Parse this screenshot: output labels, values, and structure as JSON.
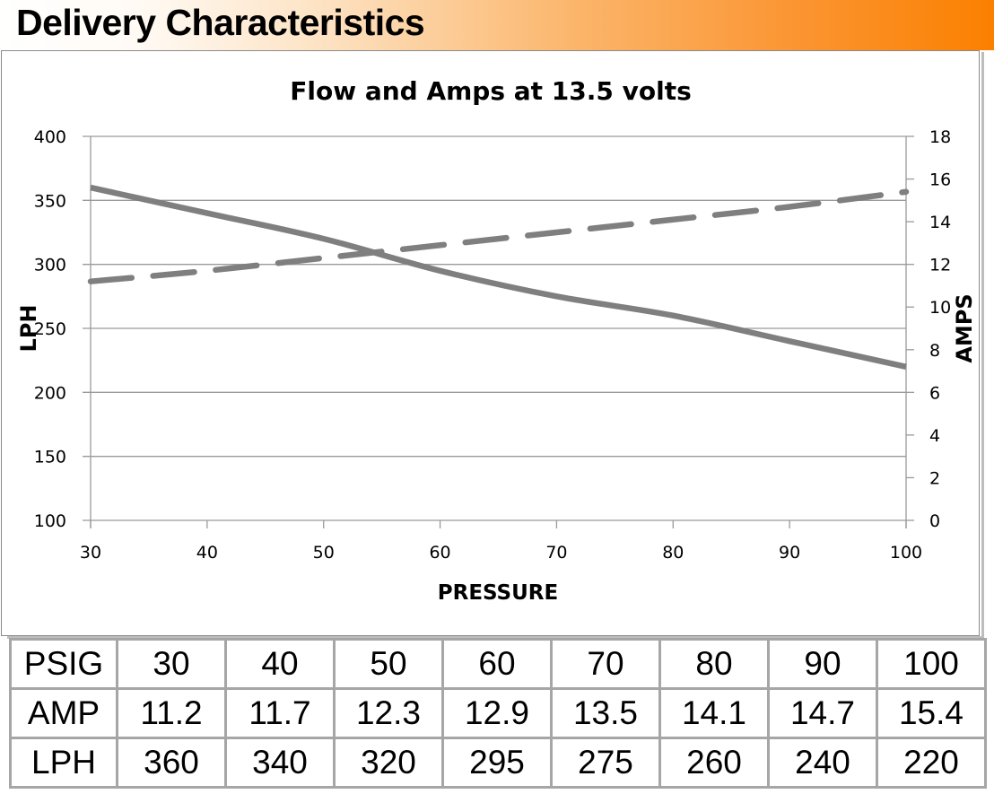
{
  "header": {
    "title": "Delivery Characteristics"
  },
  "chart_data": {
    "type": "line",
    "title": "Flow and Amps at 13.5 volts",
    "xlabel": "PRESSURE",
    "ylabel": "LPH",
    "y2label": "AMPS",
    "x": [
      30,
      40,
      50,
      60,
      70,
      80,
      90,
      100
    ],
    "xlim": [
      30,
      100
    ],
    "xticks": [
      "30",
      "40",
      "50",
      "60",
      "70",
      "80",
      "90",
      "100"
    ],
    "ylim": [
      100,
      400
    ],
    "yticks": [
      "100",
      "150",
      "200",
      "250",
      "300",
      "350",
      "400"
    ],
    "y2lim": [
      0,
      18
    ],
    "y2ticks": [
      "0",
      "2",
      "4",
      "6",
      "8",
      "10",
      "12",
      "14",
      "16",
      "18"
    ],
    "grid": "horizontal",
    "legend": "none",
    "series": [
      {
        "name": "LPH",
        "axis": "left",
        "style": "solid",
        "color": "#7f7f7f",
        "values": [
          360,
          340,
          320,
          295,
          275,
          260,
          240,
          220
        ]
      },
      {
        "name": "AMP",
        "axis": "right",
        "style": "dashed",
        "color": "#7f7f7f",
        "values": [
          11.2,
          11.7,
          12.3,
          12.9,
          13.5,
          14.1,
          14.7,
          15.4
        ]
      }
    ]
  },
  "table": {
    "rows": [
      {
        "label": "PSIG",
        "values": [
          "30",
          "40",
          "50",
          "60",
          "70",
          "80",
          "90",
          "100"
        ]
      },
      {
        "label": "AMP",
        "values": [
          "11.2",
          "11.7",
          "12.3",
          "12.9",
          "13.5",
          "14.1",
          "14.7",
          "15.4"
        ]
      },
      {
        "label": "LPH",
        "values": [
          "360",
          "340",
          "320",
          "295",
          "275",
          "260",
          "240",
          "220"
        ]
      }
    ]
  }
}
